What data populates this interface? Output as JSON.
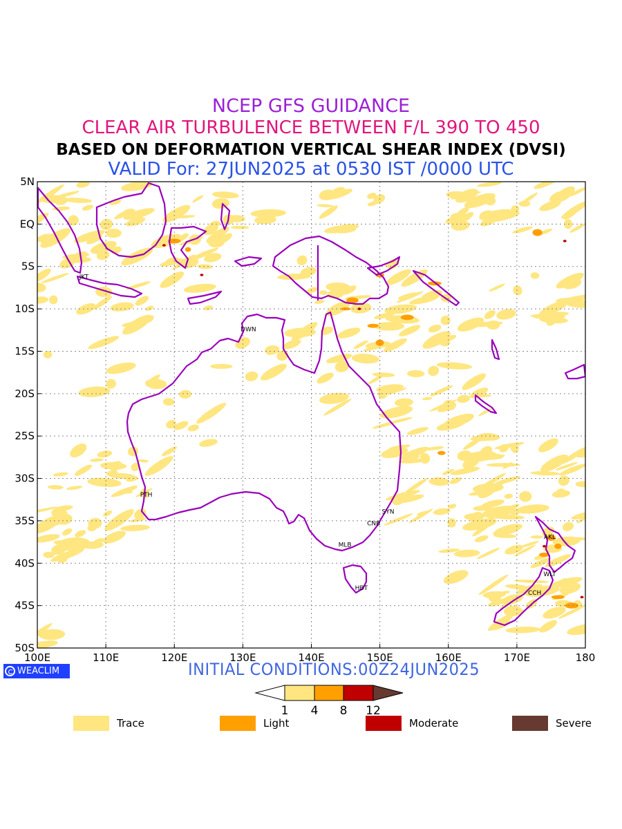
{
  "titles": {
    "line1": "NCEP GFS GUIDANCE",
    "line2": "CLEAR AIR TURBULENCE BETWEEN F/L 390 TO 450",
    "line3": "BASED ON DEFORMATION VERTICAL SHEAR INDEX (DVSI)",
    "line4": "VALID For: 27JUN2025 at 0530 IST /0000 UTC"
  },
  "colors": {
    "line1": "#9b20d6",
    "line2": "#e0157e",
    "line3": "#000000",
    "line4": "#2a52e6",
    "init": "#3f66e0",
    "coast": "#9900bb",
    "trace": "#ffe680",
    "light": "#ffa000",
    "moderate": "#c00000",
    "severe": "#663a30",
    "badge": "#2040ff"
  },
  "map": {
    "lon_min": 100,
    "lon_max": 180,
    "lat_min": -50,
    "lat_max": 5,
    "lat_ticks": [
      {
        "lat": 5,
        "label": "5N"
      },
      {
        "lat": 0,
        "label": "EQ"
      },
      {
        "lat": -5,
        "label": "5S"
      },
      {
        "lat": -10,
        "label": "10S"
      },
      {
        "lat": -15,
        "label": "15S"
      },
      {
        "lat": -20,
        "label": "20S"
      },
      {
        "lat": -25,
        "label": "25S"
      },
      {
        "lat": -30,
        "label": "30S"
      },
      {
        "lat": -35,
        "label": "35S"
      },
      {
        "lat": -40,
        "label": "40S"
      },
      {
        "lat": -45,
        "label": "45S"
      },
      {
        "lat": -50,
        "label": "50S"
      }
    ],
    "lon_ticks": [
      {
        "lon": 100,
        "label": "100E"
      },
      {
        "lon": 110,
        "label": "110E"
      },
      {
        "lon": 120,
        "label": "120E"
      },
      {
        "lon": 130,
        "label": "130E"
      },
      {
        "lon": 140,
        "label": "140E"
      },
      {
        "lon": 150,
        "label": "150E"
      },
      {
        "lon": 160,
        "label": "160E"
      },
      {
        "lon": 170,
        "label": "170E"
      },
      {
        "lon": 180,
        "label": "180"
      }
    ],
    "cities": [
      {
        "code": "JKT",
        "lon": 106.8,
        "lat": -6.2
      },
      {
        "code": "DWN",
        "lon": 130.8,
        "lat": -12.4
      },
      {
        "code": "PTH",
        "lon": 115.9,
        "lat": -31.9
      },
      {
        "code": "SYN",
        "lon": 151.2,
        "lat": -33.9
      },
      {
        "code": "CNB",
        "lon": 149.1,
        "lat": -35.3
      },
      {
        "code": "MLB",
        "lon": 144.9,
        "lat": -37.8
      },
      {
        "code": "HBT",
        "lon": 147.3,
        "lat": -42.9
      },
      {
        "code": "AKL",
        "lon": 174.8,
        "lat": -36.9
      },
      {
        "code": "WLT",
        "lon": 174.8,
        "lat": -41.3
      },
      {
        "code": "CCH",
        "lon": 172.6,
        "lat": -43.5
      }
    ]
  },
  "initial_conditions": "INITIAL CONDITIONS:00Z24JUN2025",
  "badge": {
    "icon": "weaclim-logo-icon",
    "text": "WEACLIM"
  },
  "colorbar": {
    "thresholds": [
      "1",
      "4",
      "8",
      "12"
    ]
  },
  "legend": [
    {
      "label": "Trace",
      "color": "#ffe680"
    },
    {
      "label": "Light",
      "color": "#ffa000"
    },
    {
      "label": "Moderate",
      "color": "#c00000"
    },
    {
      "label": "Severe",
      "color": "#663a30"
    }
  ]
}
